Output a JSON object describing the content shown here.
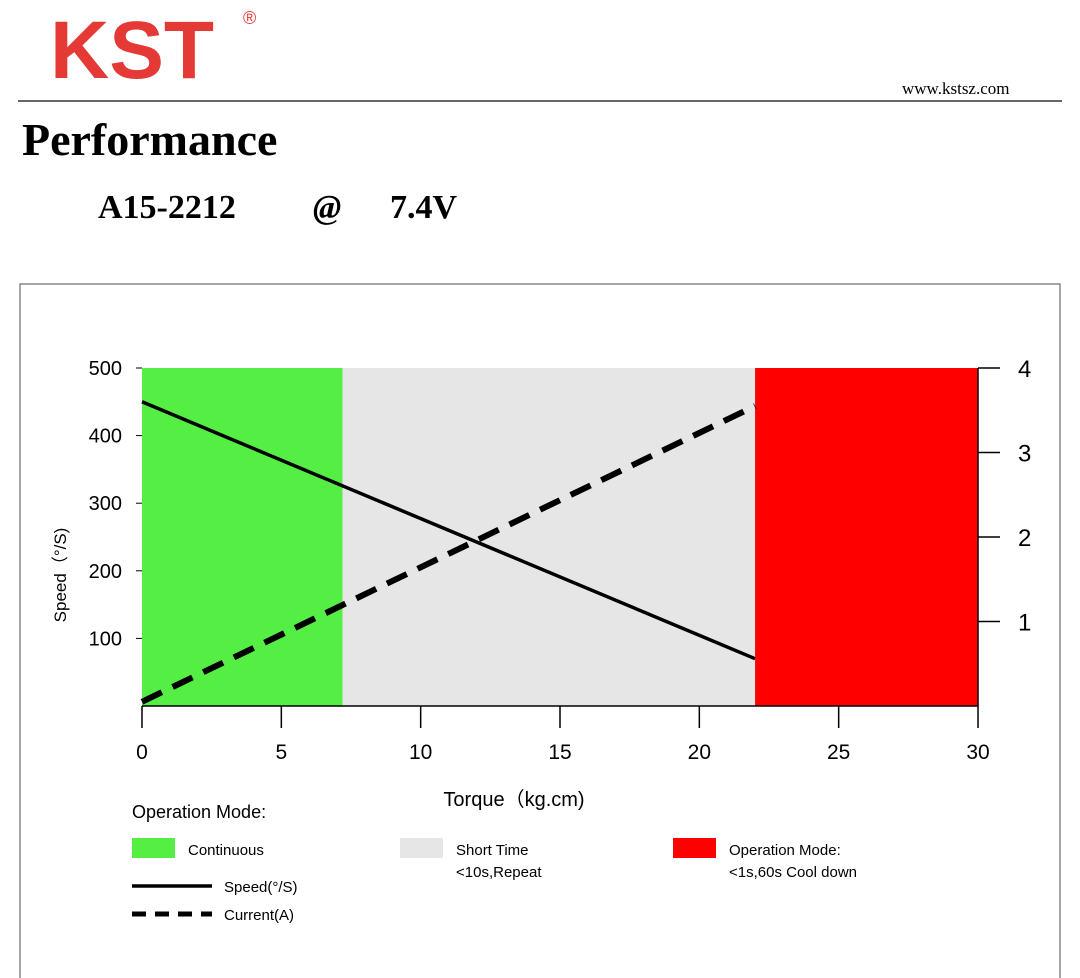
{
  "header": {
    "logo": "KST",
    "registered": "®",
    "website": "www.kstsz.com",
    "title": "Performance",
    "model": "A15-2212",
    "at": "@",
    "voltage": "7.4V"
  },
  "chart_data": {
    "type": "line",
    "xlabel": "Torque（kg.cm)",
    "ylabel": "Speed（°/S)",
    "xlim": [
      0,
      30
    ],
    "xticks": [
      0,
      5,
      10,
      15,
      20,
      25,
      30
    ],
    "ylim": [
      0,
      500
    ],
    "yticks": [
      100,
      200,
      300,
      400,
      500
    ],
    "y2lim": [
      0,
      4
    ],
    "y2ticks": [
      1,
      2,
      3,
      4
    ],
    "x": [
      0,
      22
    ],
    "series": [
      {
        "name": "Speed(°/S)",
        "color": "#000000",
        "style": "solid",
        "values": [
          450,
          70
        ]
      },
      {
        "name": "Current(A)",
        "color": "#000000",
        "style": "dashed",
        "axis": "y2",
        "values": [
          0.05,
          3.55
        ]
      }
    ],
    "legend_title": "Operation Mode:",
    "zones": [
      {
        "name": "Continuous",
        "from": 0,
        "to": 7.2,
        "color": "#55ee44"
      },
      {
        "name": "Short Time",
        "note": "<10s,Repeat",
        "from": 7.2,
        "to": 22,
        "color": "#e6e6e6"
      },
      {
        "name": "Operation Mode:",
        "note": "<1s,60s Cool down",
        "from": 22,
        "to": 30,
        "color": "#ff0000"
      }
    ]
  }
}
